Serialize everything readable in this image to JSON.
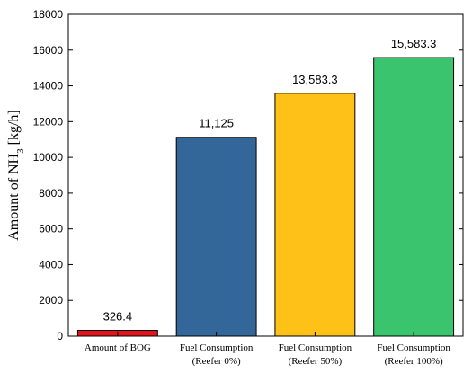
{
  "chart_data": {
    "type": "bar",
    "title": "",
    "xlabel": "",
    "ylabel": {
      "prefix": "Amount of NH",
      "subscript": "3",
      "suffix": " [kg/h]"
    },
    "ylim": [
      0,
      18000
    ],
    "yticks": [
      "0",
      "2000",
      "4000",
      "6000",
      "8000",
      "10000",
      "12000",
      "14000",
      "16000",
      "18000"
    ],
    "categories": [
      [
        "Amount of BOG"
      ],
      [
        "Fuel Consumption",
        "(Reefer 0%)"
      ],
      [
        "Fuel Consumption",
        "(Reefer 50%)"
      ],
      [
        "Fuel Consumption",
        "(Reefer 100%)"
      ]
    ],
    "values": [
      326.4,
      11125,
      13583.3,
      15583.3
    ],
    "value_labels": [
      "326.4",
      "11,125",
      "13,583.3",
      "15,583.3"
    ],
    "colors": [
      "#e3141b",
      "#336699",
      "#fdc117",
      "#3bc46e"
    ],
    "grid": false,
    "legend": "none"
  }
}
